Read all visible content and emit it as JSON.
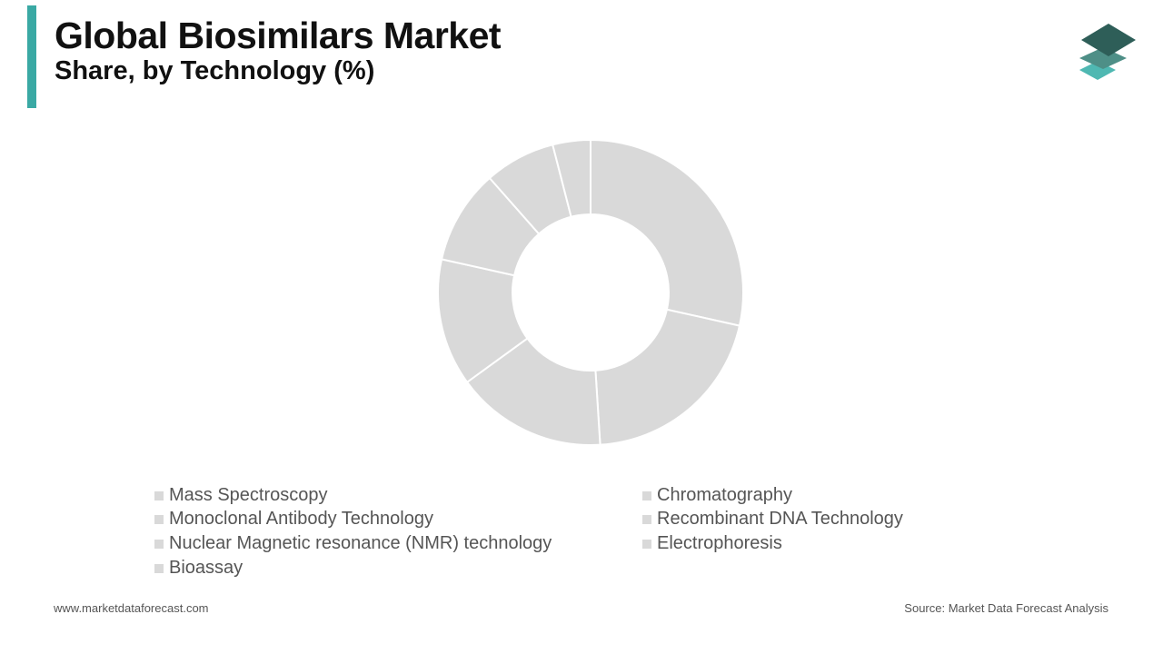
{
  "header": {
    "title": "Global Biosimilars Market",
    "subtitle": "Share, by Technology (%)"
  },
  "colors": {
    "accent": "#3aa9a4",
    "slice": "#d9d9d9",
    "logo_dark": "#2e5e58",
    "logo_mid": "#4e8f87",
    "logo_light": "#4fb8b2"
  },
  "logo": {
    "icon": "stacked-layers-icon"
  },
  "chart_data": {
    "type": "pie",
    "donut": true,
    "title": "Share, by Technology (%)",
    "categories": [
      "Mass Spectroscopy",
      "Chromatography",
      "Monoclonal Antibody Technology",
      "Recombinant DNA Technology",
      "Nuclear Magnetic resonance (NMR) technology",
      "Electrophoresis",
      "Bioassay"
    ],
    "values": [
      28.5,
      20.5,
      16,
      13.5,
      10,
      7.5,
      4
    ],
    "legend_placement": "bottom"
  },
  "footer": {
    "website": "www.marketdataforecast.com",
    "source": "Source: Market Data Forecast Analysis"
  }
}
